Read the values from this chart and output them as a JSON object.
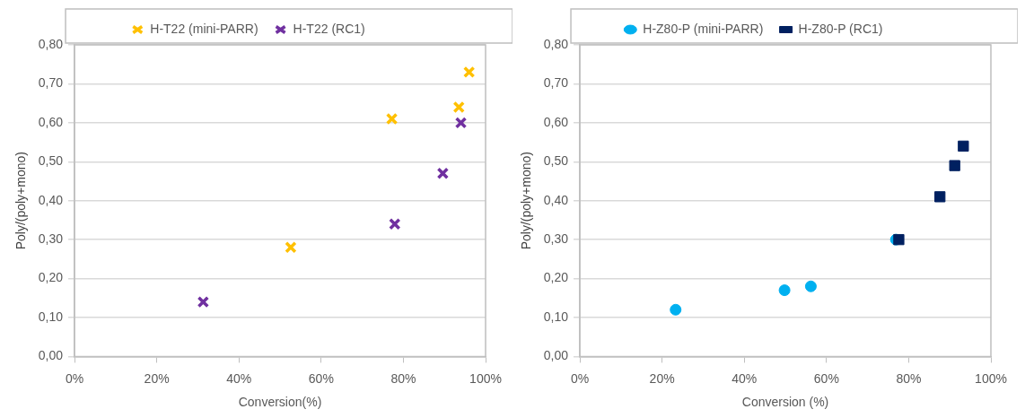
{
  "chart_data": [
    {
      "type": "scatter",
      "xlabel": "Conversion(%)",
      "ylabel": "Poly/(poly+mono)",
      "xlim": [
        0,
        100
      ],
      "ylim": [
        0,
        0.8
      ],
      "xticks": [
        {
          "value": 0,
          "label": "0%"
        },
        {
          "value": 20,
          "label": "20%"
        },
        {
          "value": 40,
          "label": "40%"
        },
        {
          "value": 60,
          "label": "60%"
        },
        {
          "value": 80,
          "label": "80%"
        },
        {
          "value": 100,
          "label": "100%"
        }
      ],
      "yticks": [
        {
          "value": 0,
          "label": "0,00"
        },
        {
          "value": 0.1,
          "label": "0,10"
        },
        {
          "value": 0.2,
          "label": "0,20"
        },
        {
          "value": 0.3,
          "label": "0,30"
        },
        {
          "value": 0.4,
          "label": "0,40"
        },
        {
          "value": 0.5,
          "label": "0,50"
        },
        {
          "value": 0.6,
          "label": "0,60"
        },
        {
          "value": 0.7,
          "label": "0,70"
        },
        {
          "value": 0.8,
          "label": "0,80"
        }
      ],
      "grid": "y",
      "legend": "top",
      "series": [
        {
          "name": "H-T22 (mini-PARR)",
          "color": "#ffc000",
          "marker": "cross",
          "x": [
            52.6,
            77.2,
            93.5,
            96.0
          ],
          "values": [
            0.28,
            0.61,
            0.64,
            0.73
          ]
        },
        {
          "name": "H-T22 (RC1)",
          "color": "#7030a0",
          "marker": "cross",
          "x": [
            31.3,
            77.9,
            89.6,
            94.0
          ],
          "values": [
            0.14,
            0.34,
            0.47,
            0.6
          ]
        }
      ]
    },
    {
      "type": "scatter",
      "xlabel": "Conversion (%)",
      "ylabel": "Poly/(poly+mono)",
      "xlim": [
        0,
        100
      ],
      "ylim": [
        0,
        0.8
      ],
      "xticks": [
        {
          "value": 0,
          "label": "0%"
        },
        {
          "value": 20,
          "label": "20%"
        },
        {
          "value": 40,
          "label": "40%"
        },
        {
          "value": 60,
          "label": "60%"
        },
        {
          "value": 80,
          "label": "80%"
        },
        {
          "value": 100,
          "label": "100%"
        }
      ],
      "yticks": [
        {
          "value": 0,
          "label": "0,00"
        },
        {
          "value": 0.1,
          "label": "0,10"
        },
        {
          "value": 0.2,
          "label": "0,20"
        },
        {
          "value": 0.3,
          "label": "0,30"
        },
        {
          "value": 0.4,
          "label": "0,40"
        },
        {
          "value": 0.5,
          "label": "0,50"
        },
        {
          "value": 0.6,
          "label": "0,60"
        },
        {
          "value": 0.7,
          "label": "0,70"
        },
        {
          "value": 0.8,
          "label": "0,80"
        }
      ],
      "grid": "y",
      "legend": "top",
      "series": [
        {
          "name": "H-Z80-P (mini-PARR)",
          "color": "#00b0f0",
          "marker": "circle",
          "x": [
            23.3,
            49.8,
            56.2,
            76.9
          ],
          "values": [
            0.12,
            0.17,
            0.18,
            0.3
          ]
        },
        {
          "name": "H-Z80-P (RC1)",
          "color": "#002060",
          "marker": "square",
          "x": [
            77.6,
            87.6,
            91.2,
            93.3
          ],
          "values": [
            0.3,
            0.41,
            0.49,
            0.54
          ]
        }
      ]
    }
  ]
}
